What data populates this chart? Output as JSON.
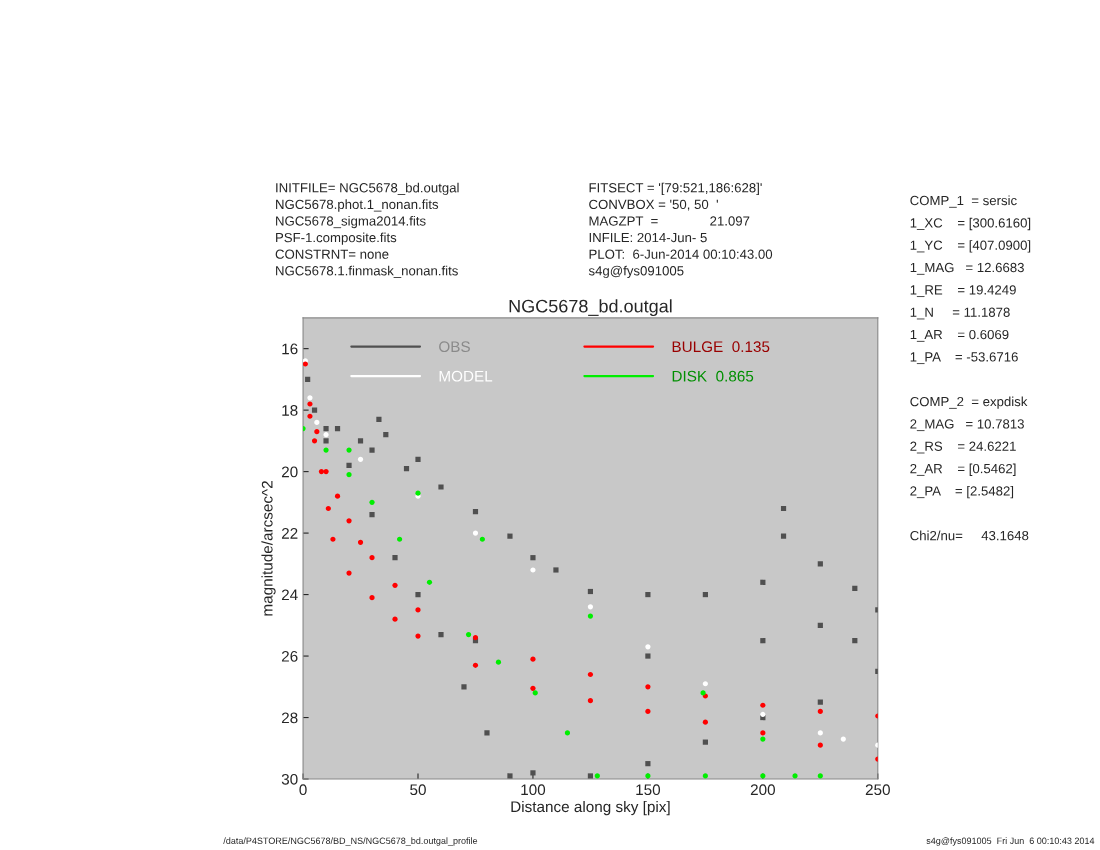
{
  "chart_data": {
    "type": "scatter",
    "title": "NGC5678_bd.outgal",
    "xlabel": "Distance along sky [pix]",
    "ylabel": "magnitude/arcsec^2",
    "xlim": [
      0,
      250
    ],
    "xticks": [
      0,
      50,
      100,
      150,
      200,
      250
    ],
    "ylim": [
      30,
      15
    ],
    "yticks": [
      16,
      18,
      20,
      22,
      24,
      26,
      28,
      30
    ],
    "grid": false,
    "legend": "top left",
    "series": [
      {
        "name": "OBS",
        "color": "#505050",
        "marker": "square",
        "x": [
          2,
          5,
          10,
          15,
          25,
          30,
          33,
          36,
          45,
          50,
          60,
          75,
          90,
          100,
          110,
          125,
          150,
          175,
          200,
          225,
          240,
          250,
          10,
          20,
          30,
          40,
          50,
          60,
          70,
          80,
          90,
          100,
          125,
          150,
          175,
          200,
          225,
          250,
          75,
          150,
          200,
          225,
          240,
          209,
          209
        ],
        "values": [
          17.0,
          18.0,
          18.6,
          18.6,
          19.0,
          19.3,
          18.3,
          18.8,
          19.9,
          19.6,
          20.5,
          21.3,
          22.1,
          22.8,
          23.2,
          23.9,
          24.0,
          24.0,
          23.6,
          23.0,
          23.8,
          24.5,
          19.0,
          19.8,
          21.4,
          22.8,
          24.0,
          25.3,
          27.0,
          28.5,
          29.9,
          29.8,
          29.9,
          29.5,
          28.8,
          28.0,
          27.5,
          26.5,
          25.5,
          26.0,
          25.5,
          25.0,
          25.5,
          21.2,
          22.1
        ]
      },
      {
        "name": "MODEL",
        "color": "#ffffff",
        "marker": "circle",
        "x": [
          1,
          3,
          6,
          10,
          25,
          50,
          75,
          100,
          125,
          150,
          175,
          200,
          225,
          235,
          250
        ],
        "values": [
          16.4,
          17.6,
          18.4,
          18.8,
          19.6,
          20.8,
          22.0,
          23.2,
          24.4,
          25.7,
          26.9,
          27.9,
          28.5,
          28.7,
          28.9
        ]
      },
      {
        "name": "BULGE  0.135",
        "color": "#ff0000",
        "marker": "circle",
        "x": [
          1,
          3,
          6,
          10,
          15,
          20,
          25,
          30,
          40,
          50,
          75,
          100,
          125,
          150,
          175,
          200,
          225,
          250,
          3,
          5,
          8,
          11,
          13,
          20,
          30,
          40,
          50,
          75,
          100,
          125,
          150,
          175,
          200,
          225,
          250
        ],
        "values": [
          16.5,
          17.8,
          18.7,
          20.0,
          20.8,
          21.6,
          22.3,
          22.8,
          23.7,
          24.5,
          25.4,
          26.1,
          26.6,
          27.0,
          27.3,
          27.6,
          27.8,
          27.95,
          18.2,
          19.0,
          20.0,
          21.2,
          22.2,
          23.3,
          24.1,
          24.8,
          25.35,
          26.3,
          27.05,
          27.45,
          27.8,
          28.15,
          28.5,
          28.9,
          29.35
        ]
      },
      {
        "name": "DISK  0.865",
        "color": "#00ee00",
        "marker": "circle",
        "x": [
          0,
          20,
          50,
          78,
          125,
          174,
          200,
          214,
          10,
          20,
          30,
          42,
          55,
          72,
          85,
          101,
          115,
          128,
          150,
          175,
          200,
          225
        ],
        "values": [
          18.6,
          19.3,
          20.7,
          22.2,
          24.7,
          27.2,
          28.7,
          29.9,
          19.3,
          20.1,
          21.0,
          22.2,
          23.6,
          25.3,
          26.2,
          27.2,
          28.5,
          29.9,
          29.9,
          29.9,
          29.9,
          29.9
        ]
      }
    ],
    "annotations": [
      "INITFILE= NGC5678_bd.outgal\nNGC5678.phot.1_nonan.fits\nNGC5678_sigma2014.fits\nPSF-1.composite.fits\nCONSTRNT= none\nNGC5678.1.finmask_nonan.fits",
      "FITSECT = '[79:521,186:628]'\nCONVBOX = '50, 50  '\nMAGZPT  =              21.097\nINFILE: 2014-Jun- 5\nPLOT:  6-Jun-2014 00:10:43.00\ns4g@fys091005",
      "COMP_1  = sersic\n1_XC    = [300.6160]\n1_YC    = [407.0900]\n1_MAG   = 12.6683\n1_RE    = 19.4249\n1_N     = 11.1878\n1_AR    = 0.6069\n1_PA    = -53.6716\n\nCOMP_2  = expdisk\n2_MAG   = 10.7813\n2_RS    = 24.6221\n2_AR    = [0.5462]\n2_PA    = [2.5482]\n\nChi2/nu=     43.1648",
      "/data/P4STORE/NGC5678/BD_NS/NGC5678_bd.outgal_profile",
      "s4g@fys091005  Fri Jun  6 00:10:43 2014"
    ]
  }
}
